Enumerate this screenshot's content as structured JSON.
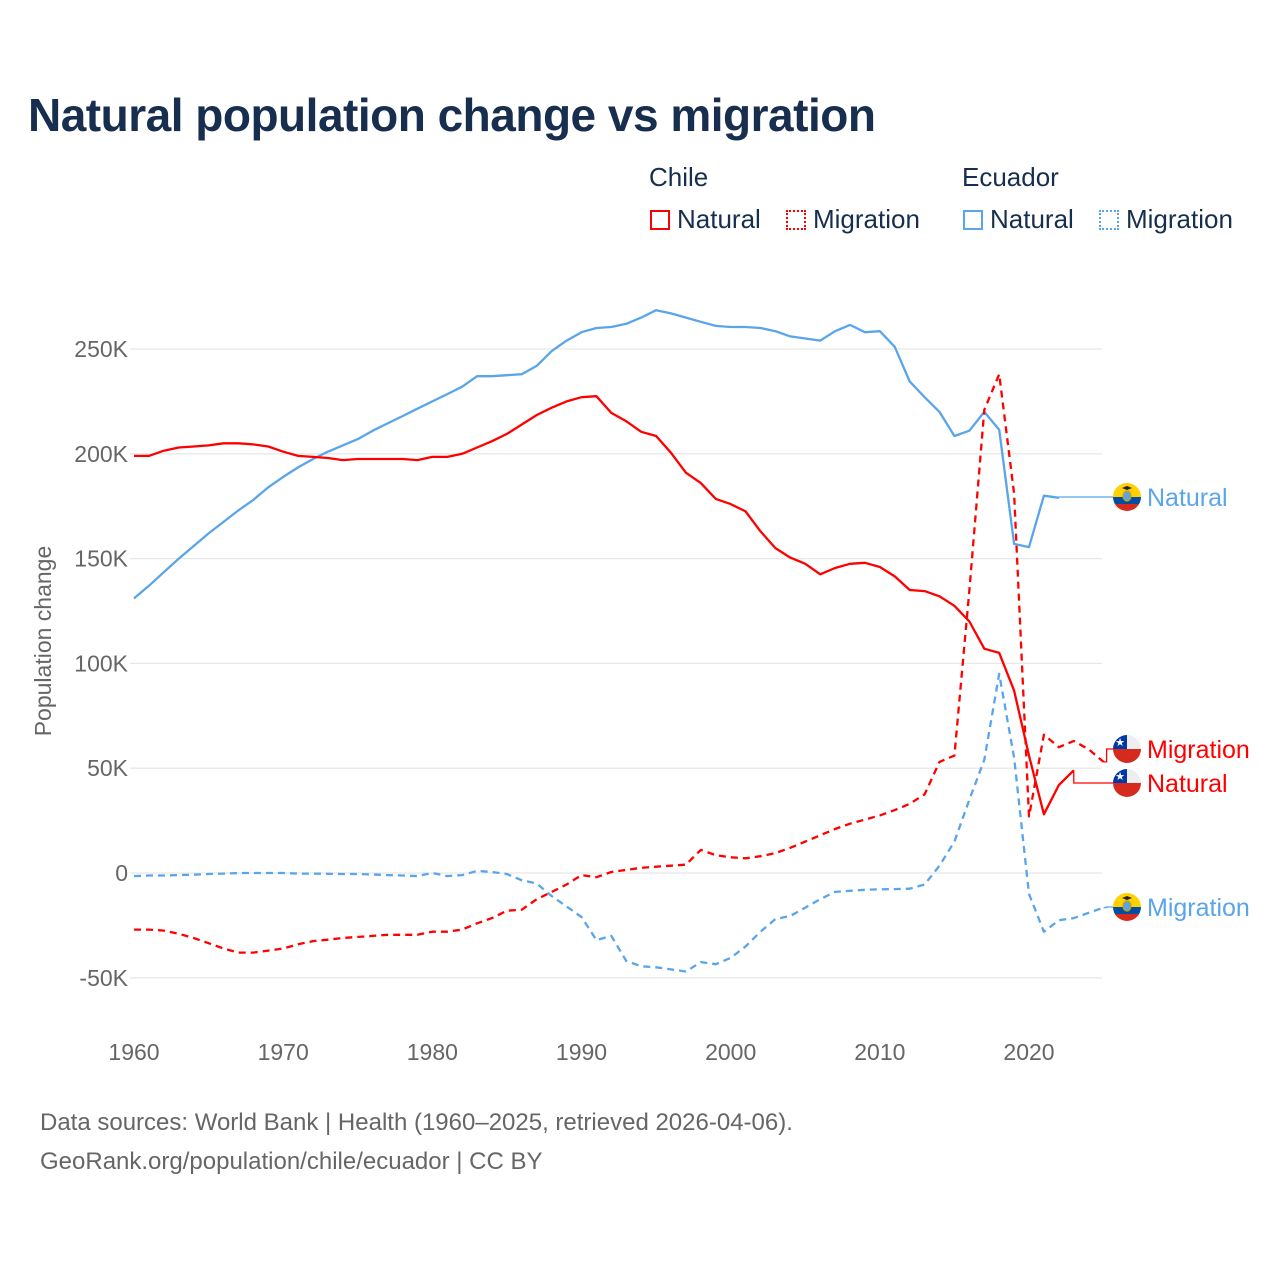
{
  "chart_data": {
    "type": "line",
    "title": "Natural population change vs migration",
    "ylabel": "Population change",
    "xlabel": "",
    "xlim": [
      1960,
      2025
    ],
    "ylim": [
      -50000,
      250000
    ],
    "x_ticks": [
      "1960",
      "1970",
      "1980",
      "1990",
      "2000",
      "2010",
      "2020"
    ],
    "y_ticks": [
      {
        "v": -50,
        "label": "-50K"
      },
      {
        "v": 0,
        "label": "0"
      },
      {
        "v": 50,
        "label": "50K"
      },
      {
        "v": 100,
        "label": "100K"
      },
      {
        "v": 150,
        "label": "150K"
      },
      {
        "v": 200,
        "label": "200K"
      },
      {
        "v": 250,
        "label": "250K"
      }
    ],
    "units_note": "values in thousands",
    "grid": true,
    "legend": {
      "placement": "top-right",
      "groups": [
        {
          "name": "Chile",
          "items": [
            "Natural",
            "Migration"
          ]
        },
        {
          "name": "Ecuador",
          "items": [
            "Natural",
            "Migration"
          ]
        }
      ]
    },
    "colors": {
      "chile": "#ff0000",
      "ecuador": "#5aa5ea"
    },
    "series": [
      {
        "id": "ecu_nat",
        "country": "Ecuador",
        "name": "Natural",
        "style": "solid"
      },
      {
        "id": "chl_nat",
        "country": "Chile",
        "name": "Natural",
        "style": "solid"
      },
      {
        "id": "chl_mig",
        "country": "Chile",
        "name": "Migration",
        "style": "dashed"
      },
      {
        "id": "ecu_mig",
        "country": "Ecuador",
        "name": "Migration",
        "style": "dashed"
      }
    ]
  },
  "series_data": {
    "ecu_nat": {
      "start": 1960,
      "values": [
        131,
        137,
        143.5,
        150,
        156,
        162,
        167.5,
        173,
        178,
        184,
        189,
        193.5,
        197.5,
        201,
        204,
        207,
        211,
        214.5,
        218,
        221.5,
        225,
        228.5,
        232,
        237,
        237,
        237.5,
        238,
        242,
        249,
        254,
        258,
        260,
        260.5,
        262,
        265,
        268.5,
        267,
        265,
        263,
        261,
        260.5,
        260.5,
        260,
        258.5,
        256,
        255,
        254,
        258.5,
        261.5,
        258,
        258.5,
        251,
        234.5,
        227,
        220,
        208.5,
        211,
        220,
        211.5,
        157,
        155.5,
        180,
        179
      ]
    },
    "chl_nat": {
      "start": 1960,
      "values": [
        199,
        199,
        201.5,
        203,
        203.5,
        204,
        205,
        205,
        204.5,
        203.5,
        201,
        199,
        198.5,
        198,
        197,
        197.5,
        197.5,
        197.5,
        197.5,
        197,
        198.5,
        198.5,
        200,
        203,
        206,
        209.5,
        214,
        218.5,
        222,
        225,
        227,
        227.5,
        219.5,
        215.5,
        210.5,
        208.5,
        200.5,
        191,
        186,
        178.5,
        176,
        172.5,
        163,
        155,
        150.5,
        147.5,
        142.5,
        145.5,
        147.5,
        148,
        146,
        141.5,
        135,
        134.5,
        132,
        127.5,
        120,
        107,
        105,
        87,
        56,
        28,
        42,
        49
      ]
    },
    "chl_mig": {
      "start": 1960,
      "values": [
        -27,
        -27,
        -27.5,
        -29,
        -31,
        -33.5,
        -36,
        -38,
        -38,
        -37,
        -36,
        -34,
        -32.5,
        -31.8,
        -31,
        -30.5,
        -30,
        -29.5,
        -29.5,
        -29.5,
        -28,
        -28,
        -27,
        -24,
        -21.5,
        -18,
        -17.5,
        -12.5,
        -9,
        -5.5,
        -1,
        -2,
        0.5,
        1.5,
        2.5,
        3,
        3.5,
        4,
        11,
        8.5,
        7.5,
        7,
        8,
        9.5,
        12,
        15,
        18,
        21,
        23.5,
        25.5,
        27.5,
        30,
        33,
        37.5,
        53,
        56,
        135,
        221,
        238,
        181,
        27,
        66,
        60,
        63,
        59,
        53
      ]
    },
    "ecu_mig": {
      "start": 1960,
      "values": [
        -1.5,
        -1.2,
        -1.2,
        -1,
        -0.8,
        -0.5,
        -0.3,
        0,
        0,
        0,
        0,
        -0.3,
        -0.3,
        -0.4,
        -0.5,
        -0.5,
        -0.7,
        -1,
        -1.2,
        -1.5,
        0,
        -1.5,
        -1,
        1,
        0.5,
        -0.5,
        -3.5,
        -5,
        -11,
        -16,
        -21,
        -32,
        -30,
        -42,
        -44.5,
        -45,
        -46,
        -47,
        -42.5,
        -43.5,
        -40.5,
        -35,
        -28,
        -22,
        -20.5,
        -16.5,
        -12.5,
        -9,
        -8.5,
        -8,
        -7.8,
        -7.7,
        -7.5,
        -5.5,
        3.5,
        15,
        35,
        54,
        95,
        55,
        -10,
        -28,
        -22.5,
        -21.5,
        -19,
        -16.5
      ]
    }
  },
  "legend": {
    "chile": "Chile",
    "ecuador": "Ecuador",
    "natural": "Natural",
    "migration": "Migration"
  },
  "end_labels": {
    "ecu_nat": "Natural",
    "chl_mig": "Migration",
    "chl_nat": "Natural",
    "ecu_mig": "Migration"
  },
  "footer": {
    "line1": "Data sources: World Bank | Health (1960–2025, retrieved 2026-04-06).",
    "line2": "GeoRank.org/population/chile/ecuador | CC BY"
  }
}
